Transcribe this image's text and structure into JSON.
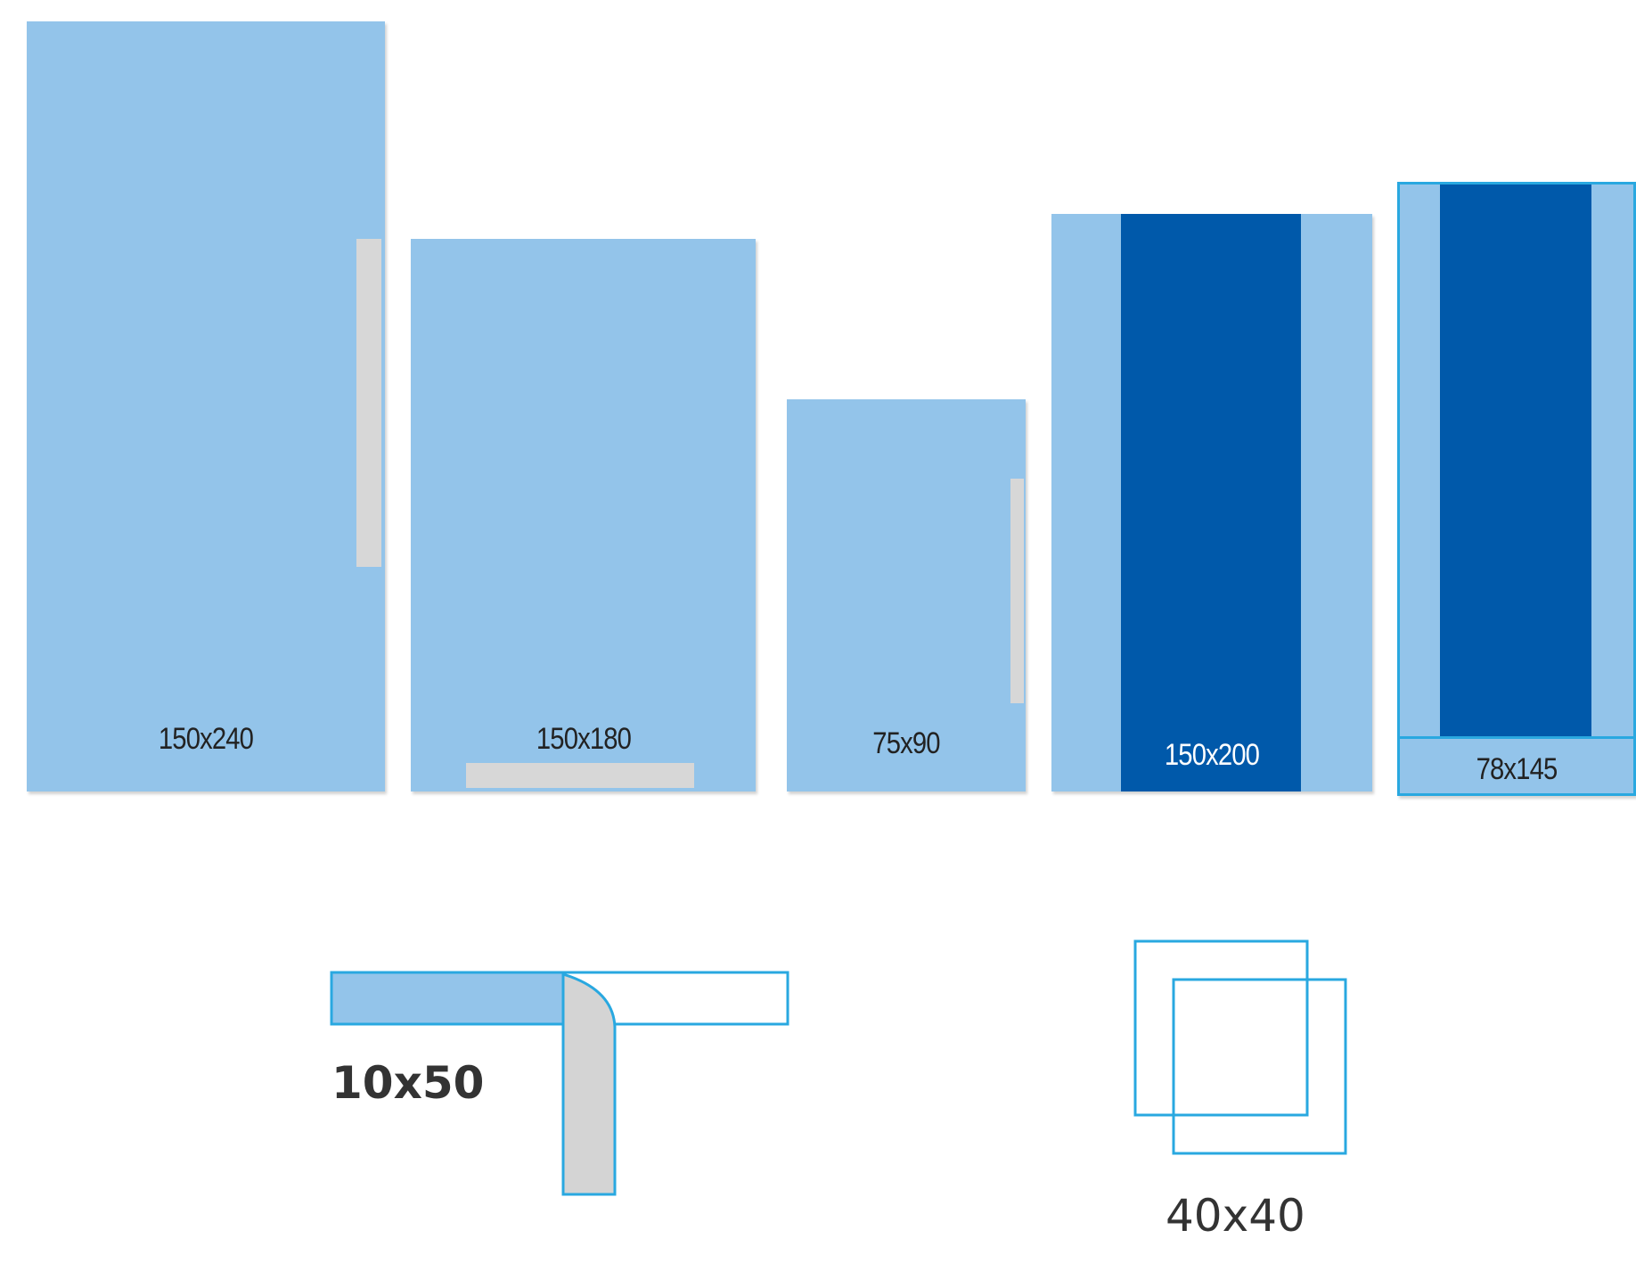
{
  "drapes": [
    {
      "label": "150x240"
    },
    {
      "label": "150x180"
    },
    {
      "label": "75x90"
    },
    {
      "label": "150x200"
    },
    {
      "label": "78x145"
    }
  ],
  "accessories": [
    {
      "label": "10x50"
    },
    {
      "label": "40x40"
    }
  ],
  "colors": {
    "drape_light_blue": "#93c4ea",
    "drape_dark_blue": "#0059aa",
    "adhesive_strip_grey": "#d7d7d7",
    "outline_cyan": "#29a8e0",
    "label_text": "#222222"
  }
}
